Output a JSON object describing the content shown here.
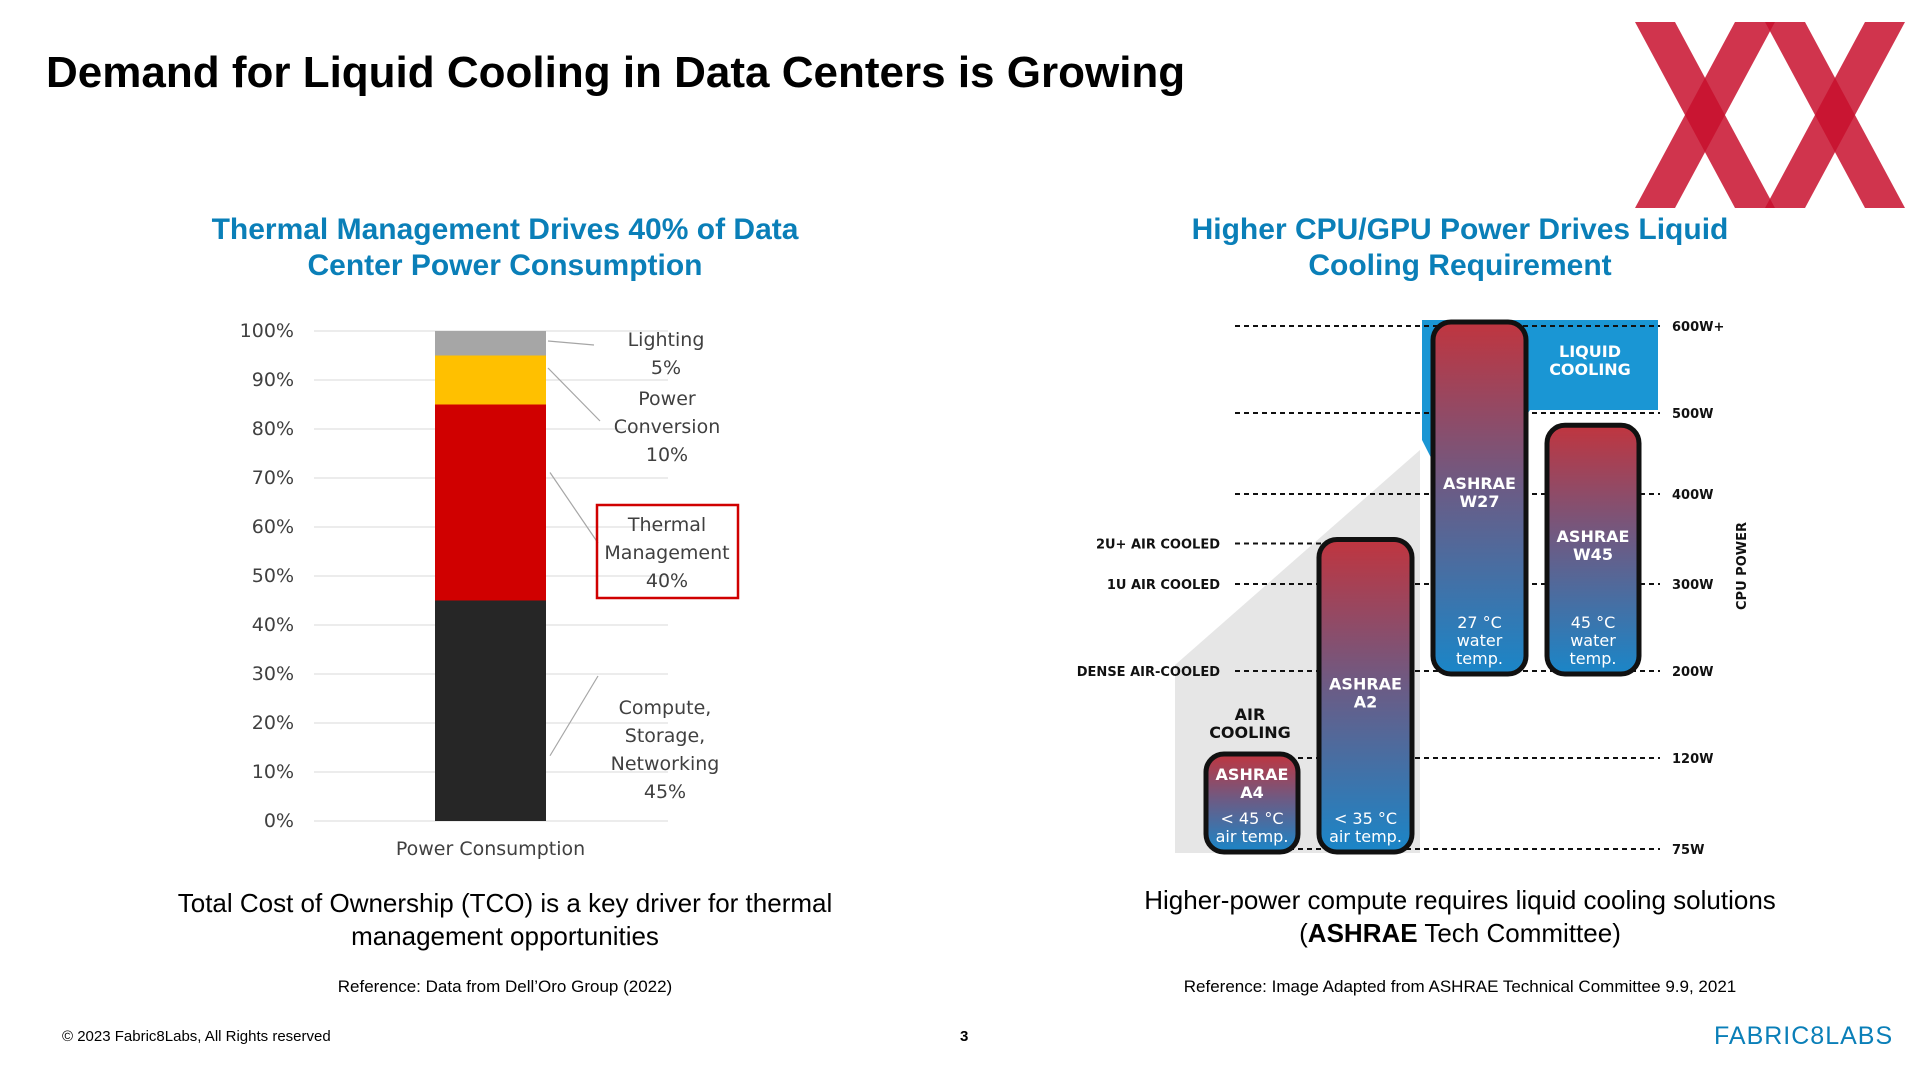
{
  "slide": {
    "title": "Demand for Liquid Cooling in Data Centers is Growing",
    "page_number": "3",
    "copyright": "© 2023 Fabric8Labs, All Rights reserved",
    "brand": "FABRIC8LABS"
  },
  "left_panel": {
    "caption": "Total Cost of Ownership (TCO) is a key driver for thermal management opportunities",
    "reference": "Reference: Data from Dell’Oro Group (2022)"
  },
  "right_panel": {
    "caption_pre": "Higher-power compute requires liquid cooling solutions (",
    "caption_bold": "ASHRAE",
    "caption_post": " Tech Committee)",
    "reference": "Reference: Image Adapted from ASHRAE Technical Committee 9.9, 2021"
  },
  "chart_data": [
    {
      "type": "bar",
      "stacked": true,
      "title": "Thermal Management Drives 40% of Data Center Power Consumption",
      "categories": [
        "Power Consumption"
      ],
      "ylim": [
        0,
        100
      ],
      "yticks": [
        "0%",
        "10%",
        "20%",
        "30%",
        "40%",
        "50%",
        "60%",
        "70%",
        "80%",
        "90%",
        "100%"
      ],
      "grid": true,
      "series": [
        {
          "name": "Compute, Storage, Networking",
          "values": [
            45
          ],
          "color": "#262626",
          "label": [
            "Compute,",
            "Storage,",
            "Networking",
            "45%"
          ]
        },
        {
          "name": "Thermal Management",
          "values": [
            40
          ],
          "color": "#d00000",
          "label": [
            "Thermal",
            "Management",
            "40%"
          ],
          "highlight": true
        },
        {
          "name": "Power Conversion",
          "values": [
            10
          ],
          "color": "#ffc000",
          "label": [
            "Power",
            "Conversion",
            "10%"
          ]
        },
        {
          "name": "Lighting",
          "values": [
            5
          ],
          "color": "#a6a6a6",
          "label": [
            "Lighting",
            "5%"
          ]
        }
      ],
      "highlight_color": "#d00000"
    },
    {
      "type": "range",
      "title": "Higher CPU/GPU Power Drives Liquid Cooling Requirement",
      "axis_title": "CPU POWER",
      "levels": [
        {
          "label": "75W",
          "value": 75
        },
        {
          "label": "120W",
          "value": 120
        },
        {
          "label": "200W",
          "value": 200
        },
        {
          "label": "300W",
          "value": 300
        },
        {
          "label": "400W",
          "value": 400
        },
        {
          "label": "500W",
          "value": 500
        },
        {
          "label": "600W+",
          "value": 600
        }
      ],
      "reference_lines": [
        {
          "label": "2U+ AIR COOLED",
          "value": 345
        },
        {
          "label": "1U AIR COOLED",
          "value": 300
        },
        {
          "label": "DENSE AIR-COOLED",
          "value": 200
        }
      ],
      "regions": [
        {
          "label": [
            "AIR",
            "COOLING"
          ],
          "color": "#e6e6e6"
        },
        {
          "label": [
            "LIQUID",
            "COOLING"
          ],
          "color": "#1a96d4"
        }
      ],
      "classes": [
        {
          "name": [
            "ASHRAE",
            "A4"
          ],
          "condition": [
            "< 45 °C",
            "air temp."
          ],
          "min": 75,
          "max": 120
        },
        {
          "name": [
            "ASHRAE",
            "A2"
          ],
          "condition": [
            "< 35 °C",
            "air temp."
          ],
          "min": 75,
          "max": 345
        },
        {
          "name": [
            "ASHRAE",
            "W27"
          ],
          "condition": [
            "27 °C",
            "water",
            "temp."
          ],
          "min": 200,
          "max": 600
        },
        {
          "name": [
            "ASHRAE",
            "W45"
          ],
          "condition": [
            "45 °C",
            "water",
            "temp."
          ],
          "min": 200,
          "max": 480
        }
      ]
    }
  ]
}
